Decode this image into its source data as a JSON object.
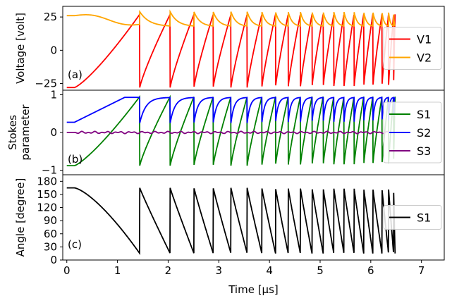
{
  "chart_data": [
    {
      "type": "line",
      "panel_label": "(a)",
      "ylabel": "Voltage [volt]",
      "ylim": [
        -30,
        33
      ],
      "yticks": [
        25,
        0,
        -25
      ],
      "ytick_labels": [
        "25",
        "0",
        "−25"
      ],
      "xlim": [
        -0.08,
        7.45
      ],
      "legend": "center-right",
      "series": [
        {
          "name": "V1",
          "color": "#ff0000",
          "shape": "sawtooth_rise",
          "base": -28,
          "top": 27,
          "pre_start": -28
        },
        {
          "name": "V2",
          "color": "#ffa500",
          "shape": "decay_spike",
          "base": 15,
          "top": 29,
          "pre_start": 26
        }
      ]
    },
    {
      "type": "line",
      "panel_label": "(b)",
      "ylabel_lines": [
        "Stokes",
        "parameter"
      ],
      "ylim": [
        -1.12,
        1.12
      ],
      "yticks": [
        1,
        0,
        -1
      ],
      "ytick_labels": [
        "1",
        "0",
        "−1"
      ],
      "xlim": [
        -0.08,
        7.45
      ],
      "legend": "center-right",
      "series": [
        {
          "name": "S1",
          "color": "#008000",
          "shape": "sawtooth_rise",
          "base": -0.88,
          "top": 0.95,
          "pre_start": -0.88
        },
        {
          "name": "S2",
          "color": "#0000ff",
          "shape": "dip_recover",
          "base": 0.25,
          "top": 0.93,
          "pre_start": 0.27
        },
        {
          "name": "S3",
          "color": "#800080",
          "shape": "noise",
          "base": 0.0,
          "top": 0.03,
          "pre_start": 0.0
        }
      ]
    },
    {
      "type": "line",
      "panel_label": "(c)",
      "ylabel": "Angle [degree]",
      "ylim": [
        0,
        195
      ],
      "yticks": [
        0,
        30,
        60,
        90,
        120,
        150,
        180
      ],
      "ytick_labels": [
        "0",
        "30",
        "60",
        "90",
        "120",
        "150",
        "180"
      ],
      "xlim": [
        -0.08,
        7.45
      ],
      "xlabel": "Time [µs]",
      "xticks": [
        0,
        1,
        2,
        3,
        4,
        5,
        6,
        7
      ],
      "xtick_labels": [
        "0",
        "1",
        "2",
        "3",
        "4",
        "5",
        "6",
        "7"
      ],
      "legend": "center-right",
      "series": [
        {
          "name": "S1",
          "color": "#000000",
          "shape": "sawtooth_fall",
          "base": 15,
          "top": 165,
          "pre_start": 165
        }
      ]
    }
  ],
  "pulse_resets_us": [
    1.44,
    2.04,
    2.51,
    2.89,
    3.24,
    3.56,
    3.85,
    4.12,
    4.37,
    4.61,
    4.84,
    5.06,
    5.27,
    5.47,
    5.67,
    5.86,
    6.04,
    6.22,
    6.35,
    6.45,
    6.48
  ],
  "signal_start_us": 0.15
}
